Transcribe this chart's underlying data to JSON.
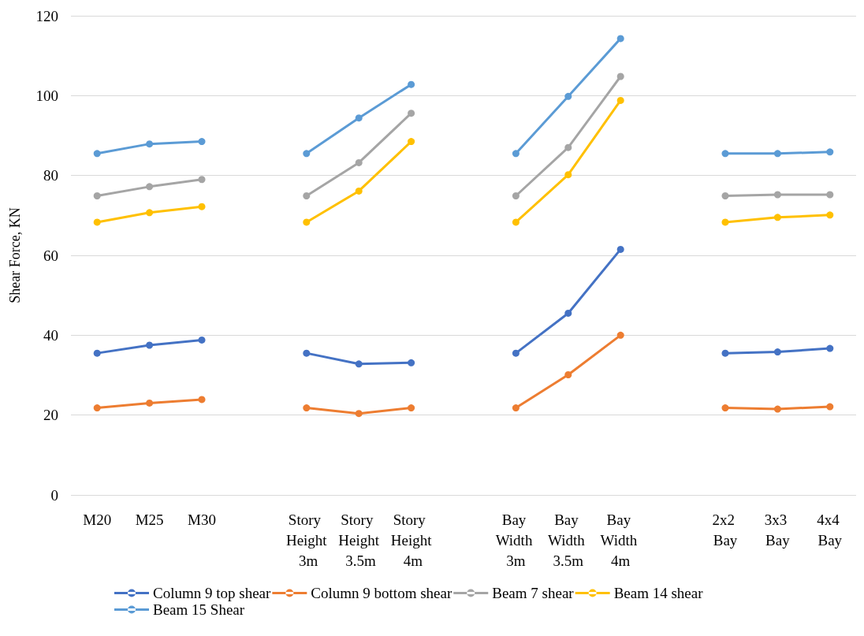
{
  "chart_data": {
    "type": "line",
    "ylabel": "Shear Force, KN",
    "categories": [
      "M20",
      "M25",
      "M30",
      null,
      "Story Height 3m",
      "Story Height 3.5m",
      "Story Height 4m",
      null,
      "Bay Width 3m",
      "Bay Width 3.5m",
      "Bay Width 4m",
      null,
      "2x2 Bay",
      "3x3 Bay",
      "4x4 Bay"
    ],
    "series": [
      {
        "name": "Column 9 top shear",
        "color": "#4472c4",
        "values": [
          35.5,
          37.5,
          38.8,
          null,
          35.5,
          32.8,
          33.1,
          null,
          35.5,
          45.5,
          61.5,
          null,
          35.5,
          35.8,
          36.7
        ]
      },
      {
        "name": "Column 9 bottom shear",
        "color": "#ed7d31",
        "values": [
          21.8,
          23.0,
          23.9,
          null,
          21.8,
          20.4,
          21.8,
          null,
          21.8,
          30.1,
          40.0,
          null,
          21.8,
          21.5,
          22.1
        ]
      },
      {
        "name": "Beam 7 shear",
        "color": "#a5a5a5",
        "values": [
          74.9,
          77.2,
          79.0,
          null,
          74.9,
          83.2,
          95.6,
          null,
          74.9,
          87.0,
          104.8,
          null,
          74.9,
          75.2,
          75.2
        ]
      },
      {
        "name": "Beam 14 shear",
        "color": "#ffc000",
        "values": [
          68.3,
          70.7,
          72.2,
          null,
          68.3,
          76.1,
          88.5,
          null,
          68.3,
          80.2,
          98.8,
          null,
          68.3,
          69.5,
          70.1
        ]
      },
      {
        "name": "Beam 15 Shear",
        "color": "#5b9bd5",
        "values": [
          85.5,
          87.9,
          88.5,
          null,
          85.5,
          94.4,
          102.8,
          null,
          85.5,
          99.8,
          114.3,
          null,
          85.5,
          85.5,
          85.9
        ]
      }
    ],
    "ylim": [
      0,
      120
    ],
    "yticks": [
      0,
      20,
      40,
      60,
      80,
      100,
      120
    ],
    "grid": "y",
    "legend": "bottom",
    "marker": "circle",
    "line_style": "solid"
  }
}
